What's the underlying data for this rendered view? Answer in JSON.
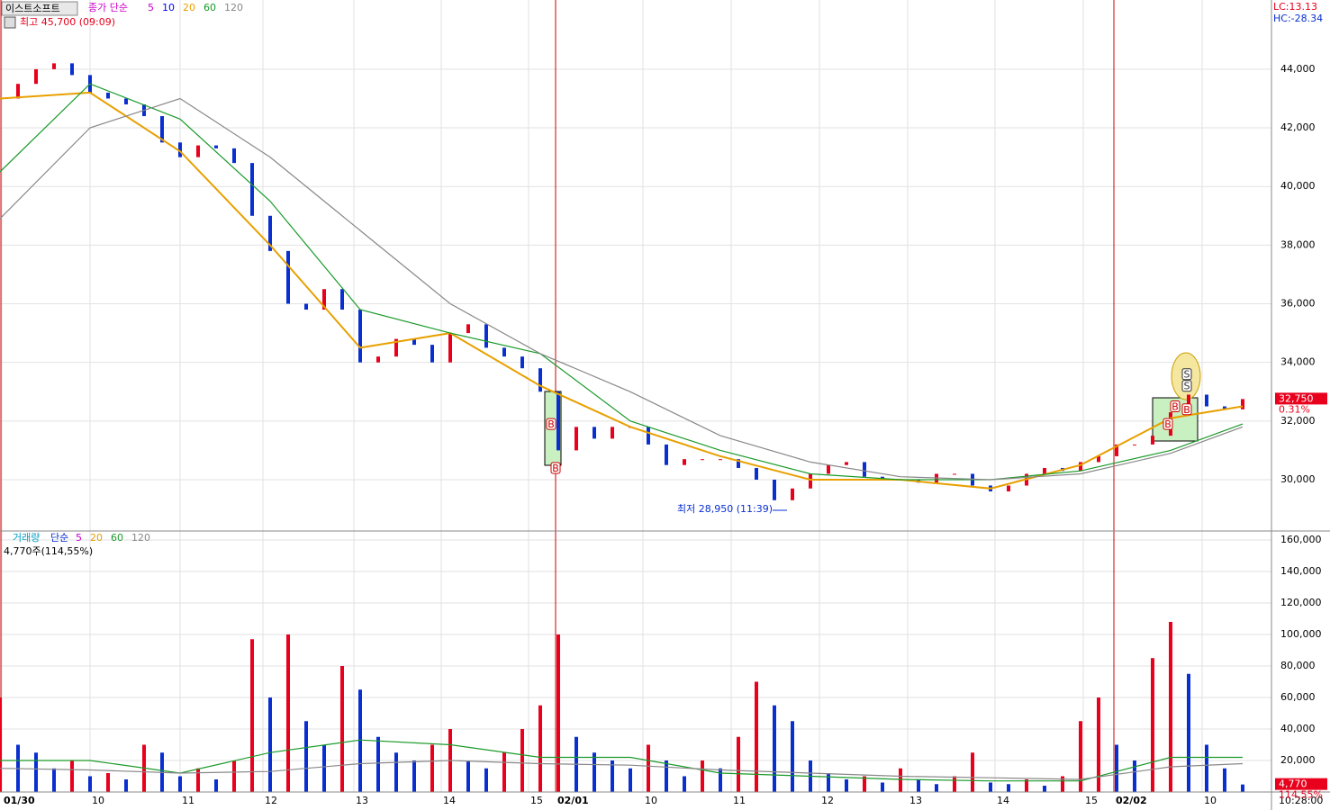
{
  "header": {
    "name": "이스트소프트",
    "lc": "LC:13.13",
    "hc": "HC:-28.34",
    "time": "10:28:00"
  },
  "chart_data": [
    {
      "type": "candlestick",
      "legend_prefix": "종가 단순",
      "legend_extra": [
        {
          "name": "5",
          "color": "#cc00cc"
        },
        {
          "name": "10",
          "color": "#0000ff"
        }
      ],
      "annotations": {
        "high": "최고 45,700 (09:09)",
        "low": "최저 28,950 (11:39)"
      },
      "last_price": {
        "value": 32750,
        "label": "32,750"
      },
      "change": "0.31%",
      "up_color": "#e8001c",
      "down_color": "#0a2fd0",
      "x": [
        0,
        1,
        2,
        3,
        4,
        5,
        6,
        7,
        8,
        9,
        10,
        11,
        12,
        13,
        14,
        15,
        16,
        17,
        18,
        19,
        20,
        21,
        22,
        23,
        24,
        25,
        26,
        27,
        28,
        29,
        30,
        31,
        32,
        33,
        34,
        35,
        36,
        37,
        38,
        39,
        40,
        41,
        42,
        43,
        44,
        45,
        46,
        47,
        48,
        49,
        50,
        51,
        52,
        53,
        54,
        55,
        56,
        57,
        58,
        59,
        60,
        61,
        62,
        63,
        64,
        65,
        66,
        67,
        68,
        69
      ],
      "values": [
        43000,
        43500,
        44000,
        44200,
        43800,
        43200,
        43000,
        42800,
        42400,
        41500,
        41000,
        41400,
        41300,
        40800,
        39000,
        37800,
        36000,
        35800,
        36500,
        35800,
        34000,
        34200,
        34800,
        34600,
        34000,
        35000,
        35300,
        34500,
        34200,
        33800,
        33000,
        31000,
        31800,
        31400,
        31800,
        31800,
        31200,
        30500,
        30700,
        30700,
        30700,
        30400,
        30000,
        29300,
        29700,
        30200,
        30500,
        30600,
        30100,
        30000,
        30000,
        29900,
        30200,
        30200,
        29800,
        29600,
        29800,
        30200,
        30400,
        30300,
        30600,
        30800,
        31200,
        31200,
        31500,
        32300,
        32900,
        32500,
        32400,
        32750
      ],
      "series": [
        {
          "name": "20",
          "color": "#e8a000",
          "x": [
            0,
            5,
            10,
            15,
            20,
            25,
            30,
            35,
            40,
            45,
            50,
            55,
            60,
            65,
            69
          ],
          "values": [
            43000,
            43200,
            41200,
            38000,
            34500,
            35000,
            33200,
            31800,
            30800,
            30000,
            30000,
            29700,
            30500,
            32100,
            32500
          ]
        },
        {
          "name": "60",
          "color": "#1a9a2a",
          "x": [
            0,
            5,
            10,
            15,
            20,
            25,
            30,
            35,
            40,
            45,
            50,
            55,
            60,
            65,
            69
          ],
          "values": [
            40500,
            43500,
            42300,
            39500,
            35800,
            35000,
            34300,
            32000,
            31000,
            30200,
            30000,
            30000,
            30300,
            31000,
            31900
          ]
        },
        {
          "name": "120",
          "color": "#888888",
          "x": [
            0,
            5,
            10,
            15,
            20,
            25,
            30,
            35,
            40,
            45,
            50,
            55,
            60,
            65,
            69
          ],
          "values": [
            38900,
            42000,
            43000,
            41000,
            38500,
            36000,
            34300,
            33000,
            31500,
            30600,
            30100,
            30000,
            30200,
            30900,
            31800
          ]
        }
      ],
      "signals": [
        {
          "x": 30.6,
          "y": 31900,
          "label": "B"
        },
        {
          "x": 30.85,
          "y": 30400,
          "label": "B"
        },
        {
          "x": 64.85,
          "y": 31900,
          "label": "B"
        },
        {
          "x": 65.25,
          "y": 32500,
          "label": "B"
        },
        {
          "x": 65.9,
          "y": 32400,
          "label": "B"
        },
        {
          "x": 65.9,
          "y": 33200,
          "label": "S"
        },
        {
          "x": 65.9,
          "y": 33600,
          "label": "S"
        }
      ],
      "xlim": [
        0,
        70.6
      ],
      "ylim": [
        28250,
        46360
      ],
      "yticks": [
        {
          "value": 30000,
          "label": "30,000"
        },
        {
          "value": 32000,
          "label": "32,000"
        },
        {
          "value": 34000,
          "label": "34,000"
        },
        {
          "value": 36000,
          "label": "36,000"
        },
        {
          "value": 38000,
          "label": "38,000"
        },
        {
          "value": 40000,
          "label": "40,000"
        },
        {
          "value": 42000,
          "label": "42,000"
        },
        {
          "value": 44000,
          "label": "44,000"
        }
      ]
    },
    {
      "type": "bar",
      "legend_prefix": "거래량",
      "legend_sub": "단순",
      "legend_extra": [
        {
          "name": "5",
          "color": "#cc00cc"
        },
        {
          "name": "20",
          "color": "#e8a000"
        }
      ],
      "info": "4,770주(114,55%)",
      "last_volume": {
        "value": 4770,
        "label": "4,770"
      },
      "ratio": "114,55%",
      "up_color": "#e8001c",
      "down_color": "#0a2fd0",
      "x": [
        0,
        1,
        2,
        3,
        4,
        5,
        6,
        7,
        8,
        9,
        10,
        11,
        12,
        13,
        14,
        15,
        16,
        17,
        18,
        19,
        20,
        21,
        22,
        23,
        24,
        25,
        26,
        27,
        28,
        29,
        30,
        31,
        32,
        33,
        34,
        35,
        36,
        37,
        38,
        39,
        40,
        41,
        42,
        43,
        44,
        45,
        46,
        47,
        48,
        49,
        50,
        51,
        52,
        53,
        54,
        55,
        56,
        57,
        58,
        59,
        60,
        61,
        62,
        63,
        64,
        65,
        66,
        67,
        68,
        69
      ],
      "values": [
        60000,
        30000,
        25000,
        15000,
        20000,
        10000,
        12000,
        8000,
        30000,
        25000,
        10000,
        15000,
        8000,
        20000,
        97000,
        60000,
        100000,
        45000,
        30000,
        80000,
        65000,
        35000,
        25000,
        20000,
        30000,
        40000,
        20000,
        15000,
        25000,
        40000,
        55000,
        100000,
        35000,
        25000,
        20000,
        15000,
        30000,
        20000,
        10000,
        20000,
        15000,
        35000,
        70000,
        55000,
        45000,
        20000,
        12000,
        8000,
        10000,
        6000,
        15000,
        8000,
        5000,
        10000,
        25000,
        6000,
        5000,
        8000,
        4000,
        10000,
        45000,
        60000,
        30000,
        20000,
        85000,
        108000,
        75000,
        30000,
        15000,
        4770
      ],
      "series": [
        {
          "name": "60",
          "color": "#1a9a2a",
          "x": [
            0,
            5,
            10,
            15,
            20,
            25,
            30,
            35,
            40,
            45,
            50,
            55,
            60,
            65,
            69
          ],
          "values": [
            20000,
            20000,
            12000,
            25000,
            33000,
            30000,
            22000,
            22000,
            12000,
            10000,
            8000,
            7000,
            7000,
            22000,
            22000
          ]
        },
        {
          "name": "120",
          "color": "#888888",
          "x": [
            0,
            5,
            10,
            15,
            20,
            25,
            30,
            35,
            40,
            45,
            50,
            55,
            60,
            65,
            69
          ],
          "values": [
            15000,
            14000,
            12000,
            13000,
            18000,
            20000,
            18000,
            17000,
            14000,
            12000,
            10000,
            9000,
            8000,
            16000,
            18000
          ]
        }
      ],
      "xlim": [
        0,
        70.6
      ],
      "ylim": [
        0,
        165700
      ],
      "yticks": [
        {
          "value": 20000,
          "label": "20,000"
        },
        {
          "value": 40000,
          "label": "40,000"
        },
        {
          "value": 60000,
          "label": "60,000"
        },
        {
          "value": 80000,
          "label": "80,000"
        },
        {
          "value": 100000,
          "label": "100,000"
        },
        {
          "value": 120000,
          "label": "120,000"
        },
        {
          "value": 140000,
          "label": "140,000"
        },
        {
          "value": 160000,
          "label": "160,000"
        }
      ],
      "xticks": [
        {
          "value": 0.1,
          "label": "01/30"
        },
        {
          "value": 5,
          "label": "10"
        },
        {
          "value": 10,
          "label": "11"
        },
        {
          "value": 14.6,
          "label": "12"
        },
        {
          "value": 19.65,
          "label": "13"
        },
        {
          "value": 24.5,
          "label": "14"
        },
        {
          "value": 29.35,
          "label": "15"
        },
        {
          "value": 30.85,
          "label": "02/01"
        },
        {
          "value": 35.7,
          "label": "10"
        },
        {
          "value": 40.6,
          "label": "11"
        },
        {
          "value": 45.5,
          "label": "12"
        },
        {
          "value": 50.4,
          "label": "13"
        },
        {
          "value": 55.25,
          "label": "14"
        },
        {
          "value": 60.15,
          "label": "15"
        },
        {
          "value": 61.85,
          "label": "02/02"
        },
        {
          "value": 66.75,
          "label": "10"
        }
      ]
    }
  ]
}
